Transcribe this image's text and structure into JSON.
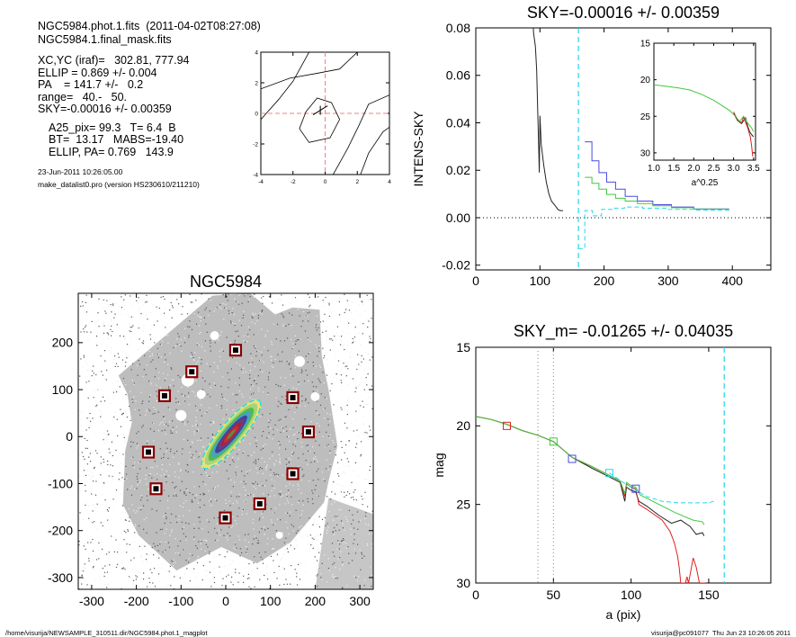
{
  "info": {
    "header": [
      "NGC5984.phot.1.fits  (2011-04-02T08:27:08)",
      "NGC5984.1.final_mask.fits"
    ],
    "params": [
      "XC,YC (iraf)=   302.81, 777.94",
      "ELLIP = 0.869 +/- 0.004",
      "PA    = 141.7 +/-   0.2",
      "range=   40.-   50.",
      "SKY=-0.00016 +/- 0.00359"
    ],
    "results": [
      "A25_pix= 99.3   T= 6.4  B",
      "BT=  13.17   MABS=-19.40",
      "ELLIP, PA= 0.769   143.9"
    ],
    "meta": [
      "23-Jun-2011 10:26:05.00",
      "make_datalist0.pro (version HS230610/211210)"
    ]
  },
  "footer": {
    "left": "/home/visurija/NEWSAMPLE_310511.dir/NGC5984.phot.1_magplot",
    "right": "visurija@pc091077  Thu Jun 23 10:26:05 2011"
  },
  "colors": {
    "blue": "#4a4ae0",
    "green": "#3ec93e",
    "red": "#e02020",
    "cyan": "#22d8ea",
    "black": "#222222",
    "gray": "#888888",
    "marker": "#8b0000"
  },
  "chart_data": [
    {
      "type": "contour",
      "title": "",
      "xlim": [
        -4,
        4
      ],
      "ylim": [
        -4,
        4
      ],
      "xticks": [
        "-4",
        "-2",
        "0",
        "2",
        "4"
      ],
      "yticks": [
        "-4",
        "-2",
        "0",
        "2",
        "4"
      ]
    },
    {
      "type": "line",
      "title": "SKY=-0.00016 +/- 0.00359",
      "xlabel": "",
      "ylabel": "INTENS-SKY",
      "xlim": [
        0,
        460
      ],
      "ylim": [
        -0.022,
        0.08
      ],
      "xticks": [
        "0",
        "100",
        "200",
        "300",
        "400"
      ],
      "yticks": [
        "-0.02",
        "0.00",
        "0.02",
        "0.04",
        "0.06",
        "0.08"
      ],
      "vlines": [
        {
          "x": 160,
          "color": "cyan",
          "style": "dashed"
        }
      ],
      "hlines": [
        {
          "y": 0,
          "color": "black",
          "style": "dotted"
        }
      ],
      "series": [
        {
          "color": "black",
          "points": [
            [
              88,
              0.09
            ],
            [
              90,
              0.078
            ],
            [
              93,
              0.072
            ],
            [
              95,
              0.062
            ],
            [
              96,
              0.05
            ],
            [
              97,
              0.04
            ],
            [
              98,
              0.03
            ],
            [
              99,
              0.019
            ],
            [
              100,
              0.043
            ],
            [
              102,
              0.031
            ],
            [
              106,
              0.022
            ],
            [
              110,
              0.015
            ],
            [
              114,
              0.01
            ],
            [
              118,
              0.007
            ],
            [
              124,
              0.005
            ],
            [
              128,
              0.0035
            ],
            [
              132,
              0.003
            ],
            [
              136,
              0.003
            ]
          ]
        },
        {
          "color": "blue",
          "step": true,
          "points": [
            [
              170,
              0.032
            ],
            [
              181,
              0.032
            ],
            [
              181,
              0.024
            ],
            [
              192,
              0.024
            ],
            [
              192,
              0.019
            ],
            [
              204,
              0.019
            ],
            [
              204,
              0.015
            ],
            [
              218,
              0.015
            ],
            [
              218,
              0.012
            ],
            [
              233,
              0.012
            ],
            [
              233,
              0.009
            ],
            [
              252,
              0.009
            ],
            [
              252,
              0.007
            ],
            [
              276,
              0.007
            ],
            [
              276,
              0.0055
            ],
            [
              305,
              0.0055
            ],
            [
              305,
              0.0045
            ],
            [
              340,
              0.0045
            ],
            [
              340,
              0.0037
            ],
            [
              395,
              0.0037
            ]
          ]
        },
        {
          "color": "green",
          "step": true,
          "points": [
            [
              170,
              0.017
            ],
            [
              181,
              0.017
            ],
            [
              181,
              0.0145
            ],
            [
              192,
              0.0145
            ],
            [
              192,
              0.012
            ],
            [
              204,
              0.012
            ],
            [
              204,
              0.0098
            ],
            [
              218,
              0.0098
            ],
            [
              218,
              0.0082
            ],
            [
              233,
              0.0082
            ],
            [
              233,
              0.007
            ],
            [
              252,
              0.007
            ],
            [
              252,
              0.006
            ],
            [
              276,
              0.006
            ],
            [
              276,
              0.005
            ],
            [
              305,
              0.005
            ],
            [
              305,
              0.0042
            ],
            [
              340,
              0.0042
            ],
            [
              340,
              0.0036
            ],
            [
              395,
              0.0036
            ]
          ]
        },
        {
          "color": "cyan",
          "dashed": true,
          "step": true,
          "points": [
            [
              160,
              -0.013
            ],
            [
              170,
              -0.013
            ],
            [
              170,
              0.003
            ],
            [
              182,
              0.003
            ],
            [
              182,
              0.0008
            ],
            [
              196,
              0.0008
            ],
            [
              196,
              0.0035
            ],
            [
              212,
              0.0035
            ],
            [
              212,
              0.004
            ],
            [
              232,
              0.004
            ],
            [
              232,
              0.0045
            ],
            [
              260,
              0.0045
            ],
            [
              260,
              0.004
            ],
            [
              300,
              0.004
            ],
            [
              300,
              0.0035
            ],
            [
              340,
              0.0035
            ],
            [
              340,
              0.0032
            ],
            [
              395,
              0.0032
            ]
          ]
        }
      ]
    },
    {
      "type": "line",
      "title": "",
      "xlabel": "a^0.25",
      "ylabel": "",
      "xlim": [
        1.0,
        3.55
      ],
      "ylim": [
        15,
        31
      ],
      "y_inverted": true,
      "xticks": [
        "1.0",
        "1.5",
        "2.0",
        "2.5",
        "3.0",
        "3.5"
      ],
      "yticks": [
        "15",
        "20",
        "25",
        "30"
      ],
      "series": [
        {
          "color": "black",
          "points": [
            [
              3.0,
              24.6
            ],
            [
              3.1,
              25.6
            ],
            [
              3.2,
              26.0
            ],
            [
              3.3,
              25.2
            ],
            [
              3.35,
              26.3
            ],
            [
              3.4,
              27.1
            ],
            [
              3.45,
              27.5
            ],
            [
              3.5,
              27.8
            ]
          ]
        },
        {
          "color": "red",
          "points": [
            [
              3.0,
              24.4
            ],
            [
              3.1,
              25.5
            ],
            [
              3.2,
              25.9
            ],
            [
              3.25,
              25.1
            ],
            [
              3.35,
              26.5
            ],
            [
              3.42,
              27.8
            ],
            [
              3.45,
              29
            ],
            [
              3.48,
              30.5
            ]
          ]
        },
        {
          "color": "green",
          "points": [
            [
              1.0,
              20.7
            ],
            [
              1.3,
              20.9
            ],
            [
              1.6,
              21.1
            ],
            [
              1.9,
              21.4
            ],
            [
              2.2,
              22.0
            ],
            [
              2.5,
              22.8
            ],
            [
              2.7,
              23.5
            ],
            [
              2.9,
              24.2
            ],
            [
              3.05,
              25.0
            ],
            [
              3.15,
              25.7
            ],
            [
              3.25,
              25.0
            ],
            [
              3.35,
              25.9
            ],
            [
              3.45,
              26.6
            ],
            [
              3.5,
              27.1
            ]
          ]
        }
      ]
    },
    {
      "type": "image",
      "title": "NGC5984",
      "xlim": [
        -330,
        330
      ],
      "ylim": [
        -325,
        305
      ],
      "xticks": [
        "-300",
        "-200",
        "-100",
        "0",
        "100",
        "200",
        "300"
      ],
      "yticks": [
        "-300",
        "-200",
        "-100",
        "0",
        "100",
        "200"
      ],
      "markers": [
        [
          22,
          184
        ],
        [
          -76,
          138
        ],
        [
          -137,
          87
        ],
        [
          150,
          83
        ],
        [
          185,
          10
        ],
        [
          -173,
          -33
        ],
        [
          -156,
          -111
        ],
        [
          150,
          -79
        ],
        [
          76,
          -143
        ],
        [
          -1,
          -173
        ]
      ]
    },
    {
      "type": "line",
      "title": "SKY_m= -0.01265 +/- 0.04035",
      "xlabel": "a (pix)",
      "ylabel": "mag",
      "xlim": [
        0,
        190
      ],
      "ylim": [
        15,
        30
      ],
      "y_inverted": true,
      "xticks": [
        "0",
        "50",
        "100",
        "150"
      ],
      "yticks": [
        "15",
        "20",
        "25",
        "30"
      ],
      "vlines": [
        {
          "x": 40,
          "color": "gray",
          "style": "dotted"
        },
        {
          "x": 50,
          "color": "gray",
          "style": "dotted"
        },
        {
          "x": 160,
          "color": "cyan",
          "style": "dashed"
        }
      ],
      "square_markers": [
        {
          "x": 20,
          "y": 20.0,
          "color": "red"
        },
        {
          "x": 50,
          "y": 21.0,
          "color": "green"
        },
        {
          "x": 62,
          "y": 22.1,
          "color": "blue"
        },
        {
          "x": 86,
          "y": 23.0,
          "color": "cyan"
        },
        {
          "x": 103,
          "y": 24.0,
          "color": "blue"
        }
      ],
      "series": [
        {
          "color": "black",
          "points": [
            [
              0,
              19.4
            ],
            [
              10,
              19.6
            ],
            [
              20,
              19.9
            ],
            [
              30,
              20.3
            ],
            [
              40,
              20.6
            ],
            [
              50,
              21.0
            ],
            [
              62,
              22.0
            ],
            [
              75,
              22.7
            ],
            [
              85,
              23.2
            ],
            [
              93,
              23.6
            ],
            [
              96,
              24.8
            ],
            [
              97,
              23.9
            ],
            [
              100,
              24.1
            ],
            [
              103,
              24.2
            ],
            [
              105,
              24.8
            ],
            [
              110,
              25.1
            ],
            [
              118,
              25.7
            ],
            [
              126,
              26.2
            ],
            [
              132,
              26.0
            ],
            [
              138,
              26.4
            ],
            [
              142,
              26.9
            ],
            [
              146,
              26.8
            ],
            [
              147,
              27.0
            ]
          ]
        },
        {
          "color": "red",
          "points": [
            [
              0,
              19.4
            ],
            [
              10,
              19.6
            ],
            [
              20,
              19.9
            ],
            [
              30,
              20.3
            ],
            [
              40,
              20.6
            ],
            [
              50,
              21.0
            ],
            [
              62,
              22.0
            ],
            [
              75,
              22.6
            ],
            [
              85,
              23.1
            ],
            [
              93,
              23.5
            ],
            [
              96,
              24.5
            ],
            [
              97,
              23.7
            ],
            [
              100,
              23.9
            ],
            [
              103,
              24.0
            ],
            [
              105,
              25.0
            ],
            [
              110,
              25.3
            ],
            [
              120,
              26.0
            ],
            [
              125,
              26.7
            ],
            [
              127,
              27.2
            ],
            [
              128,
              27.5
            ],
            [
              130,
              28.3
            ],
            [
              131,
              29
            ],
            [
              132,
              30.0
            ],
            [
              135,
              30.0
            ],
            [
              136,
              29.6
            ],
            [
              137,
              30.0
            ],
            [
              140,
              28.4
            ],
            [
              142,
              29.0
            ],
            [
              144,
              30.0
            ],
            [
              148,
              30.0
            ]
          ]
        },
        {
          "color": "green",
          "points": [
            [
              0,
              19.4
            ],
            [
              10,
              19.6
            ],
            [
              20,
              19.9
            ],
            [
              30,
              20.3
            ],
            [
              40,
              20.6
            ],
            [
              50,
              21.0
            ],
            [
              62,
              22.0
            ],
            [
              75,
              22.6
            ],
            [
              85,
              23.1
            ],
            [
              93,
              23.5
            ],
            [
              96,
              24.3
            ],
            [
              97,
              23.6
            ],
            [
              100,
              23.8
            ],
            [
              103,
              23.9
            ],
            [
              106,
              24.4
            ],
            [
              112,
              24.7
            ],
            [
              120,
              25.1
            ],
            [
              128,
              25.5
            ],
            [
              135,
              25.8
            ],
            [
              140,
              26.0
            ],
            [
              146,
              26.1
            ],
            [
              147,
              26.3
            ]
          ]
        },
        {
          "color": "cyan",
          "dashed": true,
          "points": [
            [
              86,
              23.0
            ],
            [
              95,
              23.6
            ],
            [
              100,
              23.9
            ],
            [
              110,
              24.5
            ],
            [
              120,
              24.8
            ],
            [
              130,
              24.9
            ],
            [
              140,
              24.9
            ],
            [
              146,
              24.9
            ],
            [
              150,
              24.9
            ],
            [
              153,
              24.8
            ],
            [
              155,
              24.7
            ]
          ]
        }
      ]
    }
  ]
}
